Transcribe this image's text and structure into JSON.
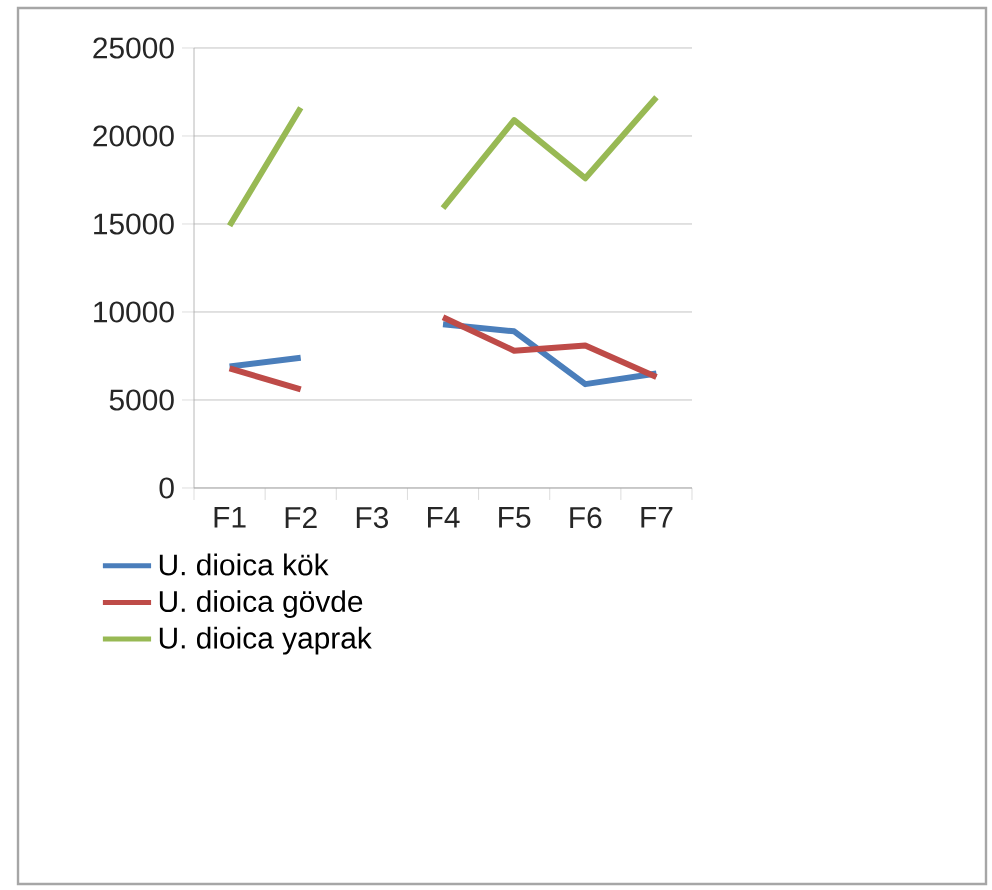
{
  "chart_data": {
    "type": "line",
    "categories": [
      "F1",
      "F2",
      "F3",
      "F4",
      "F5",
      "F6",
      "F7"
    ],
    "series": [
      {
        "name": "U. dioica kök",
        "color": "#4a7ebb",
        "values": [
          6900,
          7400,
          null,
          9300,
          8900,
          5900,
          6500
        ]
      },
      {
        "name": "U. dioica gövde",
        "color": "#be4b48",
        "values": [
          6800,
          5600,
          null,
          9700,
          7800,
          8100,
          6300
        ]
      },
      {
        "name": "U. dioica yaprak",
        "color": "#98b954",
        "values": [
          14900,
          21600,
          null,
          15900,
          20900,
          17600,
          22200
        ]
      }
    ],
    "ylim": [
      0,
      25000
    ],
    "yticks": [
      0,
      5000,
      10000,
      15000,
      20000,
      25000
    ],
    "grid": "y",
    "legend": "bottom",
    "marker": "none",
    "line_style": "solid"
  }
}
